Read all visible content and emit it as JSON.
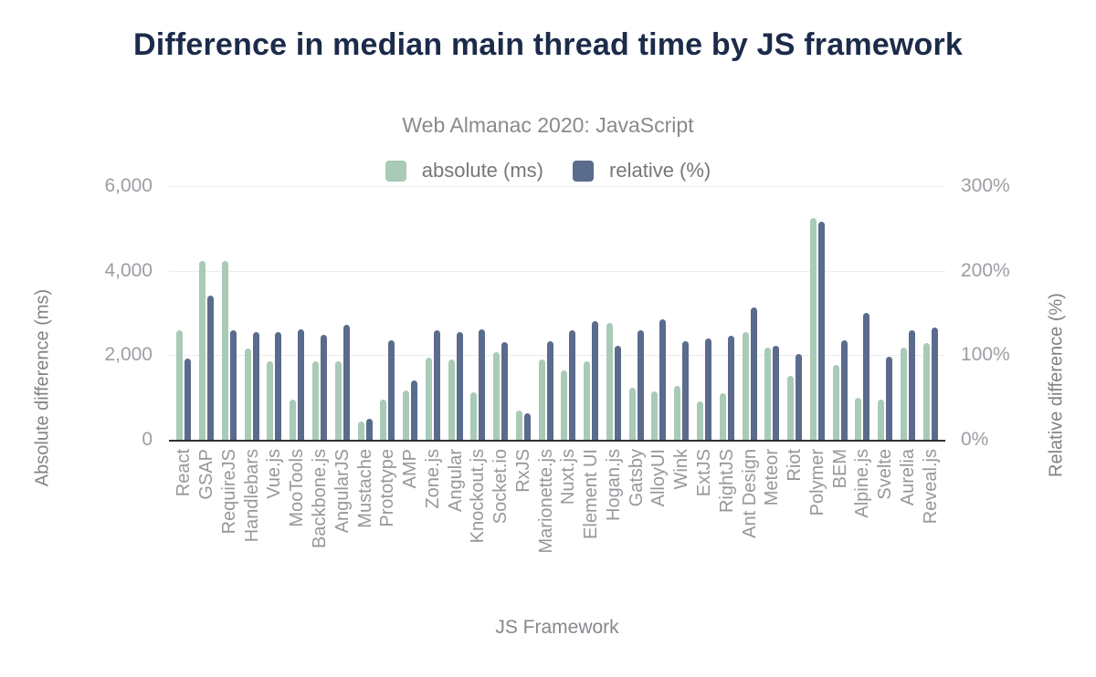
{
  "chart_data": {
    "type": "bar",
    "title": "Difference in median main thread time by JS framework",
    "subtitle": "Web Almanac 2020: JavaScript",
    "x_title": "JS Framework",
    "legend_position": "top",
    "grid": true,
    "categories": [
      "React",
      "GSAP",
      "RequireJS",
      "Handlebars",
      "Vue.js",
      "MooTools",
      "Backbone.js",
      "AngularJS",
      "Mustache",
      "Prototype",
      "AMP",
      "Zone.js",
      "Angular",
      "Knockout.js",
      "Socket.io",
      "RxJS",
      "Marionette.js",
      "Nuxt.js",
      "Element UI",
      "Hogan.js",
      "Gatsby",
      "AlloyUI",
      "Wink",
      "ExtJS",
      "RightJS",
      "Ant Design",
      "Meteor",
      "Riot",
      "Polymer",
      "BEM",
      "Alpine.js",
      "Svelte",
      "Aurelia",
      "Reveal.js"
    ],
    "series": [
      {
        "name": "absolute (ms)",
        "axis": "left",
        "color": "#a9cab7",
        "values": [
          2600,
          4240,
          4230,
          2160,
          1850,
          960,
          1850,
          1850,
          430,
          950,
          1170,
          1940,
          1900,
          1120,
          2070,
          700,
          1900,
          1640,
          1850,
          2770,
          1240,
          1150,
          1280,
          900,
          1110,
          2550,
          2170,
          1510,
          5240,
          1780,
          990,
          940,
          2180,
          2290
        ]
      },
      {
        "name": "relative (%)",
        "axis": "right",
        "color": "#5a6b8c",
        "values": [
          96,
          171,
          130,
          127,
          127,
          131,
          124,
          136,
          25,
          118,
          70,
          129,
          127,
          131,
          116,
          31,
          117,
          129,
          140,
          111,
          129,
          142,
          117,
          120,
          123,
          157,
          111,
          101,
          258,
          118,
          150,
          98,
          130,
          133
        ]
      }
    ],
    "left_axis": {
      "title": "Absolute difference (ms)",
      "range": [
        0,
        6000
      ],
      "ticks": [
        {
          "label": "6,000",
          "value": 6000
        },
        {
          "label": "4,000",
          "value": 4000
        },
        {
          "label": "2,000",
          "value": 2000
        },
        {
          "label": "0",
          "value": 0
        }
      ]
    },
    "right_axis": {
      "title": "Relative difference (%)",
      "range": [
        0,
        300
      ],
      "ticks": [
        {
          "label": "300%",
          "value": 300
        },
        {
          "label": "200%",
          "value": 200
        },
        {
          "label": "100%",
          "value": 100
        },
        {
          "label": "0%",
          "value": 0
        }
      ]
    }
  }
}
